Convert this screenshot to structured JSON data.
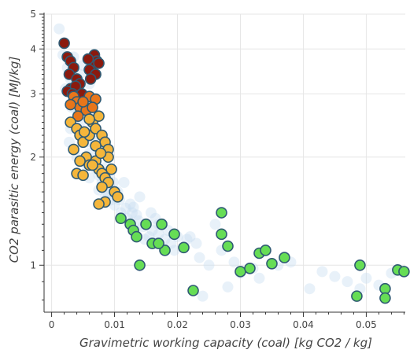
{
  "chart_data": {
    "type": "scatter",
    "title": "",
    "xlabel": "Gravimetric working capacity (coal) [kg CO2 / kg]",
    "ylabel": "CO2 parasitic energy (coal) [MJ/kg]",
    "xlim": [
      -0.0012,
      0.0562
    ],
    "ylim": [
      0.74,
      5.0
    ],
    "yscale": "log",
    "grid": true,
    "x_ticks": [
      0,
      0.01,
      0.02,
      0.03,
      0.04,
      0.05
    ],
    "x_tick_labels": [
      "0",
      "0.01",
      "0.02",
      "0.03",
      "0.04",
      "0.05"
    ],
    "y_ticks": [
      1,
      2,
      3,
      4,
      5
    ],
    "y_tick_labels": [
      "1",
      "2",
      "3",
      "4",
      "5"
    ],
    "background_points": {
      "color": "#c6dbef",
      "opacity": 0.4,
      "points": [
        [
          0.0012,
          4.55
        ],
        [
          0.0018,
          3.85
        ],
        [
          0.0025,
          3.55
        ],
        [
          0.003,
          3.3
        ],
        [
          0.0022,
          3.1
        ],
        [
          0.0035,
          2.9
        ],
        [
          0.004,
          2.7
        ],
        [
          0.0045,
          2.5
        ],
        [
          0.005,
          2.35
        ],
        [
          0.0055,
          2.2
        ],
        [
          0.006,
          2.05
        ],
        [
          0.0065,
          1.95
        ],
        [
          0.007,
          1.85
        ],
        [
          0.0075,
          1.78
        ],
        [
          0.008,
          1.7
        ],
        [
          0.0085,
          1.65
        ],
        [
          0.009,
          1.58
        ],
        [
          0.0095,
          1.52
        ],
        [
          0.01,
          1.47
        ],
        [
          0.011,
          1.4
        ],
        [
          0.012,
          1.35
        ],
        [
          0.013,
          1.45
        ],
        [
          0.014,
          1.55
        ],
        [
          0.015,
          1.3
        ],
        [
          0.016,
          1.25
        ],
        [
          0.017,
          1.22
        ],
        [
          0.018,
          1.18
        ],
        [
          0.019,
          1.15
        ],
        [
          0.02,
          1.2
        ],
        [
          0.021,
          1.12
        ],
        [
          0.022,
          1.2
        ],
        [
          0.023,
          1.15
        ],
        [
          0.024,
          0.82
        ],
        [
          0.026,
          1.3
        ],
        [
          0.027,
          1.1
        ],
        [
          0.028,
          0.87
        ],
        [
          0.03,
          0.95
        ],
        [
          0.033,
          0.92
        ],
        [
          0.036,
          1.0
        ],
        [
          0.041,
          0.86
        ],
        [
          0.045,
          0.93
        ],
        [
          0.05,
          0.92
        ],
        [
          0.052,
          0.88
        ],
        [
          0.054,
          0.95
        ],
        [
          0.0035,
          3.8
        ],
        [
          0.005,
          3.6
        ],
        [
          0.006,
          3.2
        ],
        [
          0.0065,
          2.8
        ],
        [
          0.007,
          2.6
        ],
        [
          0.003,
          2.4
        ],
        [
          0.0028,
          2.2
        ],
        [
          0.004,
          2.0
        ],
        [
          0.0055,
          1.9
        ],
        [
          0.006,
          1.75
        ],
        [
          0.0075,
          1.62
        ],
        [
          0.0085,
          1.55
        ],
        [
          0.0105,
          1.6
        ],
        [
          0.0115,
          1.7
        ],
        [
          0.0125,
          1.48
        ],
        [
          0.0135,
          1.38
        ],
        [
          0.0145,
          1.28
        ],
        [
          0.0155,
          1.2
        ],
        [
          0.0165,
          1.35
        ],
        [
          0.0045,
          3.4
        ],
        [
          0.005,
          3.0
        ],
        [
          0.0032,
          2.75
        ],
        [
          0.0068,
          2.3
        ],
        [
          0.0078,
          2.15
        ],
        [
          0.0088,
          1.88
        ],
        [
          0.0092,
          1.8
        ],
        [
          0.0098,
          1.7
        ],
        [
          0.0108,
          1.52
        ],
        [
          0.0118,
          1.44
        ],
        [
          0.0128,
          1.4
        ],
        [
          0.0138,
          1.33
        ],
        [
          0.0148,
          1.18
        ],
        [
          0.0158,
          1.4
        ],
        [
          0.017,
          1.3
        ],
        [
          0.0185,
          1.25
        ],
        [
          0.0195,
          1.1
        ],
        [
          0.0215,
          1.18
        ],
        [
          0.0235,
          1.05
        ],
        [
          0.025,
          1.0
        ],
        [
          0.029,
          1.02
        ],
        [
          0.032,
          0.98
        ],
        [
          0.038,
          1.02
        ],
        [
          0.043,
          0.96
        ],
        [
          0.047,
          0.9
        ],
        [
          0.049,
          0.86
        ]
      ]
    },
    "series": [
      {
        "color": "#8b1a0e",
        "points": [
          [
            0.002,
            4.15
          ],
          [
            0.0025,
            3.8
          ],
          [
            0.003,
            3.7
          ],
          [
            0.0035,
            3.55
          ],
          [
            0.0028,
            3.4
          ],
          [
            0.004,
            3.3
          ],
          [
            0.0045,
            3.2
          ],
          [
            0.003,
            3.1
          ],
          [
            0.0068,
            3.85
          ],
          [
            0.0072,
            3.7
          ],
          [
            0.0065,
            3.6
          ],
          [
            0.006,
            3.5
          ],
          [
            0.007,
            3.4
          ],
          [
            0.0062,
            3.3
          ],
          [
            0.0025,
            3.05
          ],
          [
            0.0038,
            3.15
          ],
          [
            0.0033,
            3.0
          ],
          [
            0.0075,
            3.65
          ],
          [
            0.0058,
            3.75
          ],
          [
            0.0048,
            3.0
          ]
        ]
      },
      {
        "color": "#e8761b",
        "points": [
          [
            0.0035,
            2.95
          ],
          [
            0.004,
            2.85
          ],
          [
            0.0045,
            2.75
          ],
          [
            0.0055,
            2.7
          ],
          [
            0.006,
            2.95
          ],
          [
            0.007,
            2.9
          ],
          [
            0.005,
            2.85
          ],
          [
            0.0042,
            2.6
          ],
          [
            0.0065,
            2.75
          ],
          [
            0.003,
            2.8
          ]
        ]
      },
      {
        "color": "#f5b63b",
        "points": [
          [
            0.003,
            2.5
          ],
          [
            0.004,
            2.4
          ],
          [
            0.0045,
            2.3
          ],
          [
            0.005,
            2.2
          ],
          [
            0.006,
            2.3
          ],
          [
            0.0065,
            2.5
          ],
          [
            0.007,
            2.4
          ],
          [
            0.0075,
            2.6
          ],
          [
            0.008,
            2.3
          ],
          [
            0.0085,
            2.2
          ],
          [
            0.009,
            2.1
          ],
          [
            0.0055,
            2.0
          ],
          [
            0.006,
            1.9
          ],
          [
            0.007,
            1.95
          ],
          [
            0.0075,
            1.85
          ],
          [
            0.008,
            1.8
          ],
          [
            0.0085,
            1.75
          ],
          [
            0.009,
            1.7
          ],
          [
            0.0095,
            1.85
          ],
          [
            0.01,
            1.6
          ],
          [
            0.0105,
            1.55
          ],
          [
            0.004,
            1.8
          ],
          [
            0.005,
            1.78
          ],
          [
            0.008,
            1.65
          ],
          [
            0.0085,
            1.5
          ],
          [
            0.0075,
            1.48
          ],
          [
            0.007,
            2.15
          ],
          [
            0.0045,
            1.95
          ],
          [
            0.0065,
            1.9
          ],
          [
            0.0035,
            2.1
          ],
          [
            0.006,
            2.55
          ],
          [
            0.009,
            2.0
          ],
          [
            0.0052,
            2.35
          ],
          [
            0.0078,
            2.05
          ]
        ]
      },
      {
        "color": "#66dd55",
        "points": [
          [
            0.011,
            1.35
          ],
          [
            0.0125,
            1.3
          ],
          [
            0.013,
            1.25
          ],
          [
            0.0135,
            1.2
          ],
          [
            0.015,
            1.3
          ],
          [
            0.016,
            1.15
          ],
          [
            0.0175,
            1.3
          ],
          [
            0.018,
            1.1
          ],
          [
            0.017,
            1.15
          ],
          [
            0.0195,
            1.22
          ],
          [
            0.021,
            1.12
          ],
          [
            0.014,
            1.0
          ],
          [
            0.0225,
            0.85
          ],
          [
            0.027,
            1.4
          ],
          [
            0.027,
            1.22
          ],
          [
            0.028,
            1.13
          ],
          [
            0.03,
            0.96
          ],
          [
            0.0315,
            0.98
          ],
          [
            0.033,
            1.08
          ],
          [
            0.034,
            1.1
          ],
          [
            0.035,
            1.01
          ],
          [
            0.037,
            1.05
          ],
          [
            0.049,
            1.0
          ],
          [
            0.0485,
            0.82
          ],
          [
            0.053,
            0.86
          ],
          [
            0.053,
            0.81
          ],
          [
            0.055,
            0.97
          ],
          [
            0.056,
            0.96
          ]
        ]
      }
    ]
  }
}
